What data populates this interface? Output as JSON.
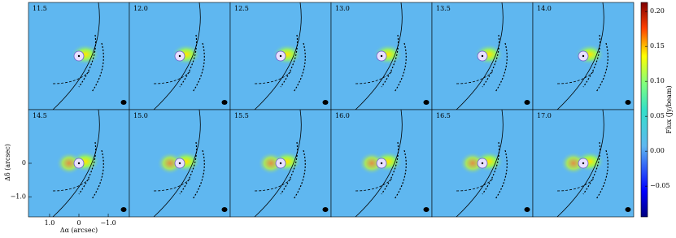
{
  "chart_data": {
    "type": "channel-map",
    "panels": [
      "11.5",
      "12.0",
      "12.5",
      "13.0",
      "13.5",
      "14.0",
      "14.5",
      "15.0",
      "15.5",
      "16.0",
      "16.5",
      "17.0"
    ],
    "xlabel": "Δα (arcsec)",
    "ylabel": "Δδ (arcsec)",
    "xlim": [
      1.72,
      -1.72
    ],
    "xticks": [
      {
        "value": 1.0,
        "label": "1.0"
      },
      0,
      {
        "value": -1.0,
        "label": "−1.0"
      }
    ],
    "ylim": [
      -1.6,
      1.6
    ],
    "yticks": [
      0,
      {
        "value": -1.0,
        "label": "−1.0"
      }
    ],
    "colorbar": {
      "label": "Flux (Jy/beam)",
      "lim": [
        -0.094,
        0.213
      ],
      "ticks": [
        {
          "value": -0.05,
          "label": "−0.05"
        },
        {
          "value": 0.0,
          "label": "0.00"
        },
        {
          "value": 0.05,
          "label": "0.05"
        },
        {
          "value": 0.1,
          "label": "0.10"
        },
        {
          "value": 0.15,
          "label": "0.15"
        },
        {
          "value": 0.2,
          "label": "0.20"
        }
      ]
    }
  }
}
